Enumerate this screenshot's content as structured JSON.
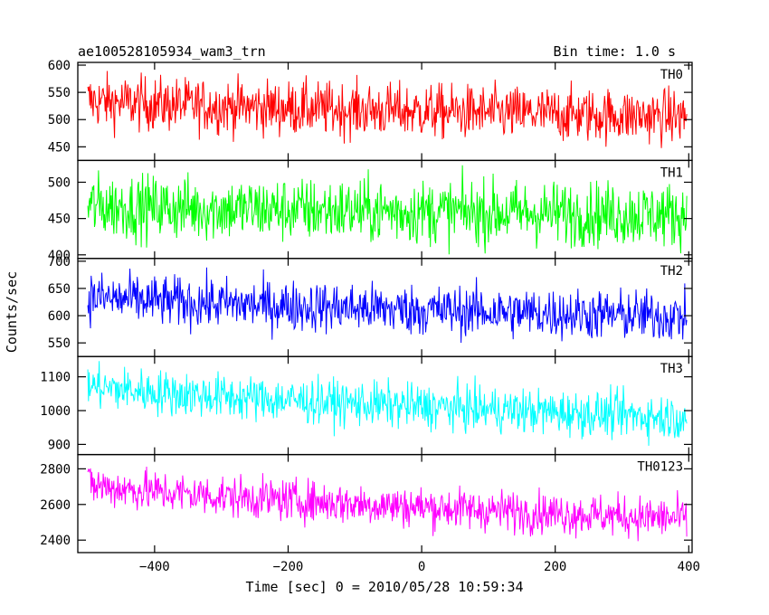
{
  "chart_data": {
    "type": "line",
    "title": "ae100528105934_wam3_trn",
    "bin_label": "Bin time: 1.0 s",
    "xlabel": "Time [sec] 0 = 2010/05/28 10:59:34",
    "ylabel": "Counts/sec",
    "xlim": [
      -515,
      405
    ],
    "x_ticks": [
      -400,
      -200,
      0,
      200,
      400
    ],
    "x_tick_labels": [
      "−400",
      "−200",
      "0",
      "200",
      "400"
    ],
    "grid": false,
    "panels": [
      {
        "name": "TH0",
        "color": "#ff0000",
        "ylim": [
          425,
          605
        ],
        "y_ticks": [
          450,
          500,
          550,
          600
        ],
        "y_tick_labels": [
          "450",
          "500",
          "550",
          "600"
        ],
        "trend_start": 535,
        "trend_end": 505,
        "noise": 45
      },
      {
        "name": "TH1",
        "color": "#00ff00",
        "ylim": [
          395,
          530
        ],
        "y_ticks": [
          400,
          450,
          500
        ],
        "y_tick_labels": [
          "400",
          "450",
          "500"
        ],
        "trend_start": 468,
        "trend_end": 455,
        "noise": 40
      },
      {
        "name": "TH2",
        "color": "#0000ff",
        "ylim": [
          525,
          705
        ],
        "y_ticks": [
          550,
          600,
          650,
          700
        ],
        "y_tick_labels": [
          "550",
          "600",
          "650",
          "700"
        ],
        "trend_start": 635,
        "trend_end": 598,
        "noise": 42
      },
      {
        "name": "TH3",
        "color": "#00ffff",
        "ylim": [
          870,
          1160
        ],
        "y_ticks": [
          900,
          1000,
          1100
        ],
        "y_tick_labels": [
          "900",
          "1000",
          "1100"
        ],
        "trend_start": 1075,
        "trend_end": 980,
        "noise": 60
      },
      {
        "name": "TH0123",
        "color": "#ff00ff",
        "ylim": [
          2330,
          2880
        ],
        "y_ticks": [
          2400,
          2600,
          2800
        ],
        "y_tick_labels": [
          "2400",
          "2600",
          "2800"
        ],
        "trend_start": 2715,
        "trend_end": 2520,
        "noise": 105
      }
    ]
  }
}
